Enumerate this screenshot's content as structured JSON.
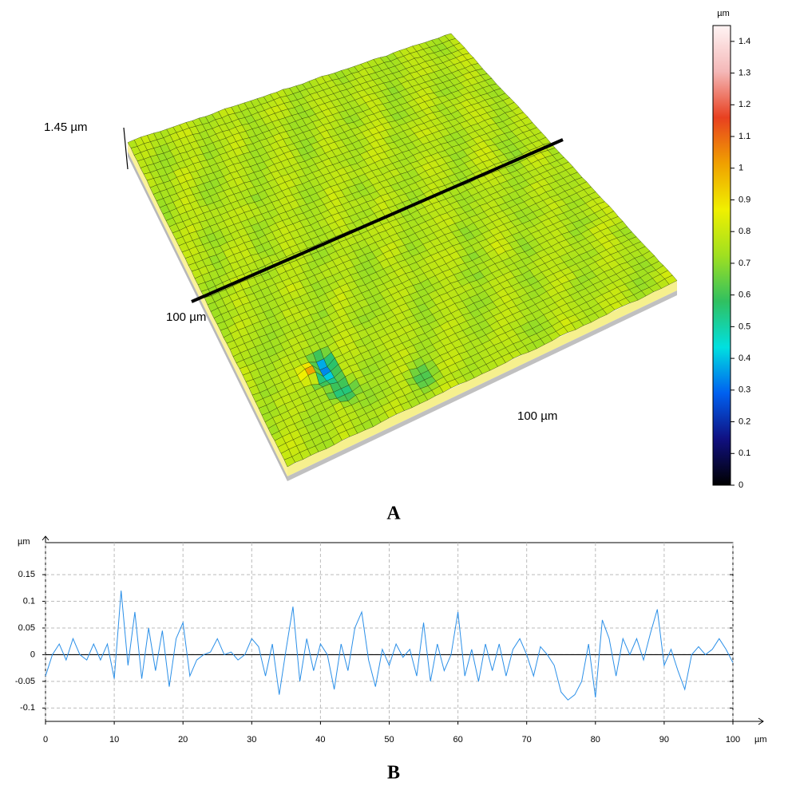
{
  "chart_data": [
    {
      "type": "surface3d",
      "panel_label": "A",
      "z_label": "1.45 µm",
      "x_label": "100 µm",
      "y_label": "100 µm",
      "colorbar": {
        "unit": "µm",
        "lim": [
          0,
          1.45
        ],
        "ticks": [
          0,
          0.1,
          0.2,
          0.3,
          0.4,
          0.5,
          0.6,
          0.7,
          0.8,
          0.9,
          1,
          1.1,
          1.2,
          1.3,
          1.4
        ],
        "colors": [
          "#000000",
          "#101080",
          "#0060f0",
          "#00e0e0",
          "#30c060",
          "#a0e020",
          "#f0f000",
          "#f0a000",
          "#e84020",
          "#f4b8b8",
          "#fff4f4"
        ]
      }
    },
    {
      "type": "line",
      "panel_label": "B",
      "y_unit": "µm",
      "x_unit": "µm",
      "color": "#2a8fe8",
      "grid": true,
      "xlim": [
        0,
        100
      ],
      "ylim": [
        -0.125,
        0.21
      ],
      "xticks": [
        0,
        10,
        20,
        30,
        40,
        50,
        60,
        70,
        80,
        90,
        100
      ],
      "yticks": [
        -0.1,
        -0.05,
        0,
        0.05,
        0.1,
        0.15
      ],
      "x": [
        0,
        1,
        2,
        3,
        4,
        5,
        6,
        7,
        8,
        9,
        10,
        11,
        12,
        13,
        14,
        15,
        16,
        17,
        18,
        19,
        20,
        21,
        22,
        23,
        24,
        25,
        26,
        27,
        28,
        29,
        30,
        31,
        32,
        33,
        34,
        35,
        36,
        37,
        38,
        39,
        40,
        41,
        42,
        43,
        44,
        45,
        46,
        47,
        48,
        49,
        50,
        51,
        52,
        53,
        54,
        55,
        56,
        57,
        58,
        59,
        60,
        61,
        62,
        63,
        64,
        65,
        66,
        67,
        68,
        69,
        70,
        71,
        72,
        73,
        74,
        75,
        76,
        77,
        78,
        79,
        80,
        81,
        82,
        83,
        84,
        85,
        86,
        87,
        88,
        89,
        90,
        91,
        92,
        93,
        94,
        95,
        96,
        97,
        98,
        99,
        100
      ],
      "values": [
        -0.04,
        0.0,
        0.02,
        -0.01,
        0.03,
        0.0,
        -0.01,
        0.02,
        -0.01,
        0.02,
        -0.045,
        0.12,
        -0.02,
        0.08,
        -0.045,
        0.05,
        -0.03,
        0.045,
        -0.06,
        0.03,
        0.06,
        -0.04,
        -0.01,
        0.0,
        0.005,
        0.03,
        0.0,
        0.005,
        -0.01,
        0.0,
        0.03,
        0.015,
        -0.04,
        0.02,
        -0.075,
        0.01,
        0.09,
        -0.05,
        0.03,
        -0.03,
        0.02,
        0.0,
        -0.065,
        0.02,
        -0.03,
        0.05,
        0.08,
        -0.01,
        -0.06,
        0.01,
        -0.02,
        0.02,
        -0.005,
        0.01,
        -0.04,
        0.06,
        -0.05,
        0.02,
        -0.03,
        0.0,
        0.08,
        -0.04,
        0.01,
        -0.05,
        0.02,
        -0.03,
        0.02,
        -0.04,
        0.01,
        0.03,
        0.0,
        -0.04,
        0.015,
        0.0,
        -0.02,
        -0.07,
        -0.085,
        -0.075,
        -0.05,
        0.02,
        -0.08,
        0.065,
        0.03,
        -0.04,
        0.03,
        0.0,
        0.03,
        -0.01,
        0.04,
        0.085,
        -0.02,
        0.01,
        -0.03,
        -0.065,
        0.0,
        0.015,
        0.0,
        0.01,
        0.03,
        0.01,
        -0.015
      ]
    }
  ]
}
